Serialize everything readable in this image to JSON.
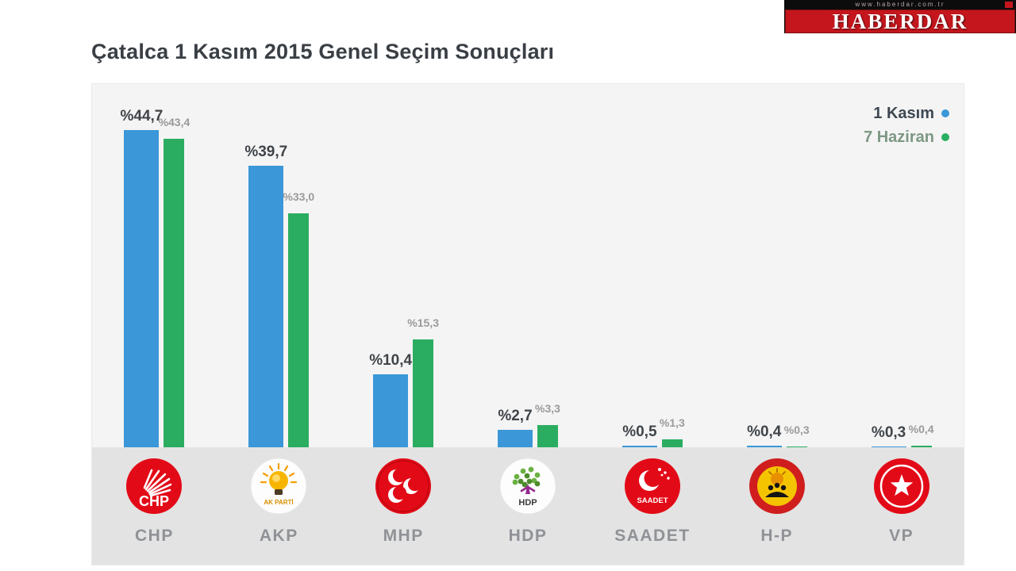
{
  "brand": {
    "url": "www.haberdar.com.tr",
    "name": "HABERDAR"
  },
  "title": "Çatalca 1 Kasım 2015 Genel Seçim Sonuçları",
  "chart_data": {
    "type": "bar",
    "title": "Çatalca 1 Kasım 2015 Genel Seçim Sonuçları",
    "unit": "%",
    "categories": [
      "CHP",
      "AKP",
      "MHP",
      "HDP",
      "SAADET",
      "H-P",
      "VP"
    ],
    "series": [
      {
        "name": "1 Kasım",
        "color": "#3b97d8",
        "values": [
          44.7,
          39.7,
          10.4,
          2.7,
          0.5,
          0.4,
          0.3
        ],
        "labels": [
          "%44,7",
          "%39,7",
          "%10,4",
          "%2,7",
          "%0,5",
          "%0,4",
          "%0,3"
        ]
      },
      {
        "name": "7 Haziran",
        "color": "#2bad61",
        "values": [
          43.4,
          33.0,
          15.3,
          3.3,
          1.3,
          0.3,
          0.4
        ],
        "labels": [
          "%43,4",
          "%33,0",
          "%15,3",
          "%3,3",
          "%1,3",
          "%0,3",
          "%0,4"
        ]
      }
    ],
    "ylim": [
      0,
      50
    ],
    "grid": false,
    "legend_position": "top-right",
    "plot_background": "#f4f4f4",
    "band_background": "#e3e3e3"
  }
}
